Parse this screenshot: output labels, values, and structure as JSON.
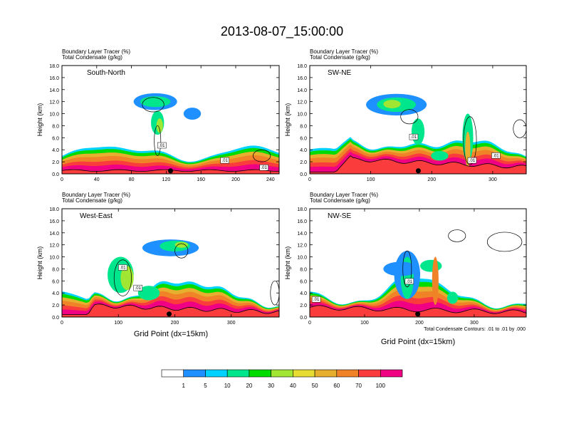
{
  "title": "2013-08-07_15:00:00",
  "panel_title_lines": [
    "Boundary Layer Tracer   (%)",
    "Total Condensate   (g/kg)"
  ],
  "contour_note": "Total Condensate Contours: .01 to .01 by .000",
  "xlabel": "Grid Point (dx=15km)",
  "ylabel": "Height (km)",
  "colors": {
    "fill_levels": [
      "#ffffff",
      "#1e90ff",
      "#00d2ff",
      "#00e68c",
      "#00dc00",
      "#a0e632",
      "#e6dc32",
      "#e6af2d",
      "#f08228",
      "#fa3c3c",
      "#f00082"
    ],
    "contour": "#000000",
    "location_dot": "#000000"
  },
  "chart_data": [
    {
      "type": "heatmap",
      "name": "South-North",
      "label": "South-North",
      "xlim": [
        0,
        250
      ],
      "ylim": [
        0,
        18
      ],
      "x_ticks": [
        "0",
        "40",
        "80",
        "120",
        "160",
        "200",
        "240"
      ],
      "y_ticks": [
        "0.0",
        "2.0",
        "4.0",
        "6.0",
        "8.0",
        "10.0",
        "12.0",
        "14.0",
        "16.0",
        "18.0"
      ],
      "contour_labels": [
        ".01",
        ".01",
        ".01"
      ],
      "location_x": 125
    },
    {
      "type": "heatmap",
      "name": "SW-NE",
      "label": "SW-NE",
      "xlim": [
        0,
        355
      ],
      "ylim": [
        0,
        18
      ],
      "x_ticks": [
        "0",
        "100",
        "200",
        "300"
      ],
      "y_ticks": [
        "0.0",
        "2.0",
        "4.0",
        "6.0",
        "8.0",
        "10.0",
        "12.0",
        "14.0",
        "16.0",
        "18.0"
      ],
      "contour_labels": [
        ".01",
        ".01",
        ".01"
      ],
      "location_x": 178
    },
    {
      "type": "heatmap",
      "name": "West-East",
      "label": "West-East",
      "xlim": [
        0,
        385
      ],
      "ylim": [
        0,
        18
      ],
      "x_ticks": [
        "0",
        "100",
        "200",
        "300"
      ],
      "y_ticks": [
        "0.0",
        "2.0",
        "4.0",
        "6.0",
        "8.0",
        "10.0",
        "12.0",
        "14.0",
        "16.0",
        "18.0"
      ],
      "contour_labels": [
        ".01",
        ".01"
      ],
      "location_x": 190
    },
    {
      "type": "heatmap",
      "name": "NW-SE",
      "label": "NW-SE",
      "xlim": [
        0,
        395
      ],
      "ylim": [
        0,
        18
      ],
      "x_ticks": [
        "0",
        "100",
        "200",
        "300"
      ],
      "y_ticks": [
        "0.0",
        "2.0",
        "4.0",
        "6.0",
        "8.0",
        "10.0",
        "12.0",
        "14.0",
        "16.0",
        "18.0"
      ],
      "contour_labels": [
        ".01",
        ".01"
      ],
      "location_x": 197
    }
  ],
  "colorbar": {
    "labels": [
      "1",
      "5",
      "10",
      "20",
      "30",
      "40",
      "50",
      "60",
      "70",
      "100"
    ]
  }
}
